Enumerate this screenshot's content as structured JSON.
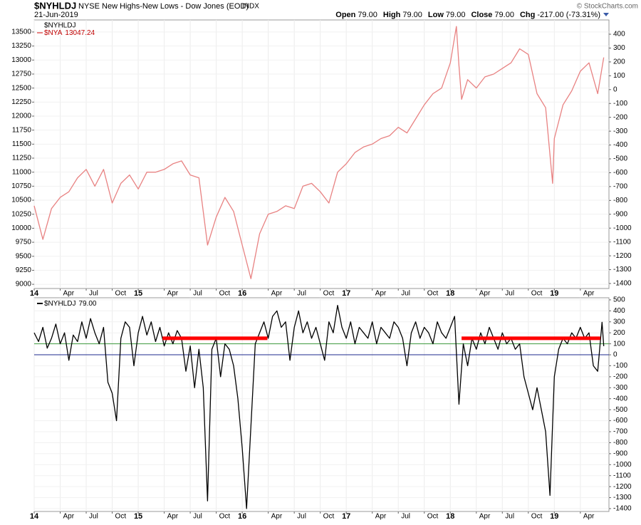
{
  "header": {
    "symbol": "$NYHLDJ",
    "name": "NYSE New Highs-New Lows - Dow Jones (EOD)",
    "exchange": "INDX",
    "date": "21-Jun-2019",
    "quote": [
      {
        "label": "Open",
        "value": "79.00"
      },
      {
        "label": "High",
        "value": "79.00"
      },
      {
        "label": "Low",
        "value": "79.00"
      },
      {
        "label": "Close",
        "value": "79.00"
      },
      {
        "label": "Chg",
        "value": "-217.00 (-73.31%)"
      }
    ],
    "copyright": "© StockCharts.com"
  },
  "chart_data": [
    {
      "type": "line",
      "y2label": "$NYHLDJ",
      "grid": true,
      "xlim": [
        0,
        66.3
      ],
      "xticks": [
        {
          "value": 0,
          "label": "14"
        },
        {
          "value": 3,
          "label": "Apr"
        },
        {
          "value": 6,
          "label": "Jul"
        },
        {
          "value": 9,
          "label": "Oct"
        },
        {
          "value": 12,
          "label": "15"
        },
        {
          "value": 15,
          "label": "Apr"
        },
        {
          "value": 18,
          "label": "Jul"
        },
        {
          "value": 21,
          "label": "Oct"
        },
        {
          "value": 24,
          "label": "16"
        },
        {
          "value": 27,
          "label": "Apr"
        },
        {
          "value": 30,
          "label": "Jul"
        },
        {
          "value": 33,
          "label": "Oct"
        },
        {
          "value": 36,
          "label": "17"
        },
        {
          "value": 39,
          "label": "Apr"
        },
        {
          "value": 42,
          "label": "Jul"
        },
        {
          "value": 45,
          "label": "Oct"
        },
        {
          "value": 48,
          "label": "18"
        },
        {
          "value": 51,
          "label": "Apr"
        },
        {
          "value": 54,
          "label": "Jul"
        },
        {
          "value": 57,
          "label": "Oct"
        },
        {
          "value": 60,
          "label": "19"
        },
        {
          "value": 63,
          "label": "Apr"
        }
      ],
      "ylim": [
        8925,
        13715
      ],
      "yticks": [
        9000,
        9250,
        9500,
        9750,
        10000,
        10250,
        10500,
        10750,
        11000,
        11250,
        11500,
        11750,
        12000,
        12250,
        12500,
        12750,
        13000,
        13250,
        13500
      ],
      "y2lim": [
        -1436,
        503
      ],
      "y2ticks": [
        -1400,
        -1300,
        -1200,
        -1100,
        -1000,
        -900,
        -800,
        -700,
        -600,
        -500,
        -400,
        -300,
        -200,
        -100,
        0,
        100,
        200,
        300,
        400
      ],
      "series": [
        {
          "name": "$NYA",
          "value_label": "13047.24",
          "color": "#e88282",
          "x": [
            0,
            1,
            2,
            3,
            4,
            5,
            6,
            7,
            8,
            9,
            10,
            11,
            12,
            13,
            14,
            15,
            16,
            17,
            18,
            19,
            20,
            21,
            22,
            23,
            24,
            25,
            26,
            27,
            28,
            29,
            30,
            31,
            32,
            33,
            34,
            35,
            36,
            37,
            38,
            39,
            40,
            41,
            42,
            43,
            44,
            45,
            46,
            47,
            48,
            48.7,
            49,
            49.3,
            50,
            51,
            52,
            53,
            54,
            55,
            56,
            57,
            58,
            59,
            59.8,
            60,
            61,
            62,
            63,
            64,
            65,
            65.7
          ],
          "values": [
            10400,
            9800,
            10350,
            10550,
            10650,
            10900,
            11050,
            10750,
            11050,
            10450,
            10800,
            10950,
            10700,
            11000,
            11000,
            11050,
            11150,
            11200,
            10950,
            10900,
            9700,
            10200,
            10550,
            10300,
            9700,
            9100,
            9900,
            10250,
            10300,
            10400,
            10350,
            10750,
            10800,
            10650,
            10450,
            11000,
            11150,
            11350,
            11450,
            11500,
            11600,
            11650,
            11800,
            11700,
            11950,
            12200,
            12400,
            12500,
            12950,
            13600,
            12900,
            12300,
            12650,
            12500,
            12700,
            12750,
            12850,
            12950,
            13200,
            13100,
            12400,
            12150,
            10800,
            11600,
            12200,
            12450,
            12800,
            12950,
            12400,
            13047.24
          ]
        }
      ]
    },
    {
      "type": "line",
      "grid": true,
      "yaxis_side": "right",
      "xlim": [
        0,
        66.3
      ],
      "xticks": [
        {
          "value": 0,
          "label": "14"
        },
        {
          "value": 3,
          "label": "Apr"
        },
        {
          "value": 6,
          "label": "Jul"
        },
        {
          "value": 9,
          "label": "Oct"
        },
        {
          "value": 12,
          "label": "15"
        },
        {
          "value": 15,
          "label": "Apr"
        },
        {
          "value": 18,
          "label": "Jul"
        },
        {
          "value": 21,
          "label": "Oct"
        },
        {
          "value": 24,
          "label": "16"
        },
        {
          "value": 27,
          "label": "Apr"
        },
        {
          "value": 30,
          "label": "Jul"
        },
        {
          "value": 33,
          "label": "Oct"
        },
        {
          "value": 36,
          "label": "17"
        },
        {
          "value": 39,
          "label": "Apr"
        },
        {
          "value": 42,
          "label": "Jul"
        },
        {
          "value": 45,
          "label": "Oct"
        },
        {
          "value": 48,
          "label": "18"
        },
        {
          "value": 51,
          "label": "Apr"
        },
        {
          "value": 54,
          "label": "Jul"
        },
        {
          "value": 57,
          "label": "Oct"
        },
        {
          "value": 60,
          "label": "19"
        },
        {
          "value": 63,
          "label": "Apr"
        }
      ],
      "ylim": [
        -1426,
        519
      ],
      "yticks": [
        -1400,
        -1300,
        -1200,
        -1100,
        -1000,
        -900,
        -800,
        -700,
        -600,
        -500,
        -400,
        -300,
        -200,
        -100,
        0,
        100,
        200,
        300,
        400,
        500
      ],
      "reference_lines": [
        {
          "value": 100,
          "color": "#3c9a3c"
        },
        {
          "value": 0,
          "color": "#1c2a8c"
        }
      ],
      "annotations": [
        {
          "x": [
            14.8,
            26.9
          ],
          "y": 150,
          "color": "#ff0000"
        },
        {
          "x": [
            49.3,
            65.3
          ],
          "y": 150,
          "color": "#ff0000"
        }
      ],
      "series": [
        {
          "name": "$NYHLDJ",
          "value_label": "79.00",
          "color": "#000000",
          "x": [
            0,
            0.5,
            1,
            1.5,
            2,
            2.5,
            3,
            3.5,
            4,
            4.5,
            5,
            5.5,
            6,
            6.5,
            7,
            7.5,
            8,
            8.5,
            9,
            9.5,
            10,
            10.5,
            11,
            11.5,
            12,
            12.5,
            13,
            13.5,
            14,
            14.5,
            15,
            15.5,
            16,
            16.5,
            17,
            17.5,
            18,
            18.5,
            19,
            19.5,
            20,
            20.5,
            21,
            21.5,
            22,
            22.5,
            23,
            23.5,
            24,
            24.5,
            25,
            25.5,
            26,
            26.5,
            27,
            27.5,
            28,
            28.5,
            29,
            29.5,
            30,
            30.5,
            31,
            31.5,
            32,
            32.5,
            33,
            33.5,
            34,
            34.5,
            35,
            35.5,
            36,
            36.5,
            37,
            37.5,
            38,
            38.5,
            39,
            39.5,
            40,
            40.5,
            41,
            41.5,
            42,
            42.5,
            43,
            43.5,
            44,
            44.5,
            45,
            45.5,
            46,
            46.5,
            47,
            47.5,
            48,
            48.5,
            49,
            49.5,
            50,
            50.5,
            51,
            51.5,
            52,
            52.5,
            53,
            53.5,
            54,
            54.5,
            55,
            55.5,
            56,
            56.5,
            57,
            57.5,
            58,
            58.5,
            59,
            59.5,
            60,
            60.5,
            61,
            61.5,
            62,
            62.5,
            63,
            63.5,
            64,
            64.5,
            65,
            65.5,
            65.7
          ],
          "values": [
            200,
            120,
            250,
            60,
            150,
            280,
            100,
            200,
            -50,
            180,
            120,
            300,
            150,
            330,
            200,
            100,
            250,
            -250,
            -350,
            -600,
            150,
            300,
            250,
            -100,
            200,
            350,
            180,
            300,
            120,
            250,
            80,
            200,
            100,
            220,
            150,
            -150,
            80,
            -300,
            50,
            -300,
            -1330,
            50,
            150,
            -200,
            100,
            50,
            -100,
            -400,
            -850,
            -1400,
            -650,
            100,
            200,
            300,
            150,
            350,
            400,
            250,
            300,
            -50,
            250,
            400,
            200,
            300,
            150,
            250,
            100,
            -50,
            300,
            200,
            450,
            250,
            150,
            300,
            100,
            250,
            200,
            150,
            300,
            100,
            250,
            200,
            150,
            300,
            250,
            150,
            -100,
            200,
            300,
            150,
            250,
            200,
            100,
            300,
            200,
            150,
            250,
            350,
            -450,
            100,
            -100,
            150,
            50,
            200,
            100,
            250,
            150,
            50,
            200,
            100,
            150,
            50,
            100,
            -200,
            -350,
            -500,
            -300,
            -500,
            -700,
            -1280,
            -200,
            50,
            150,
            100,
            200,
            150,
            250,
            150,
            200,
            -100,
            -150,
            296,
            79
          ]
        }
      ]
    }
  ]
}
